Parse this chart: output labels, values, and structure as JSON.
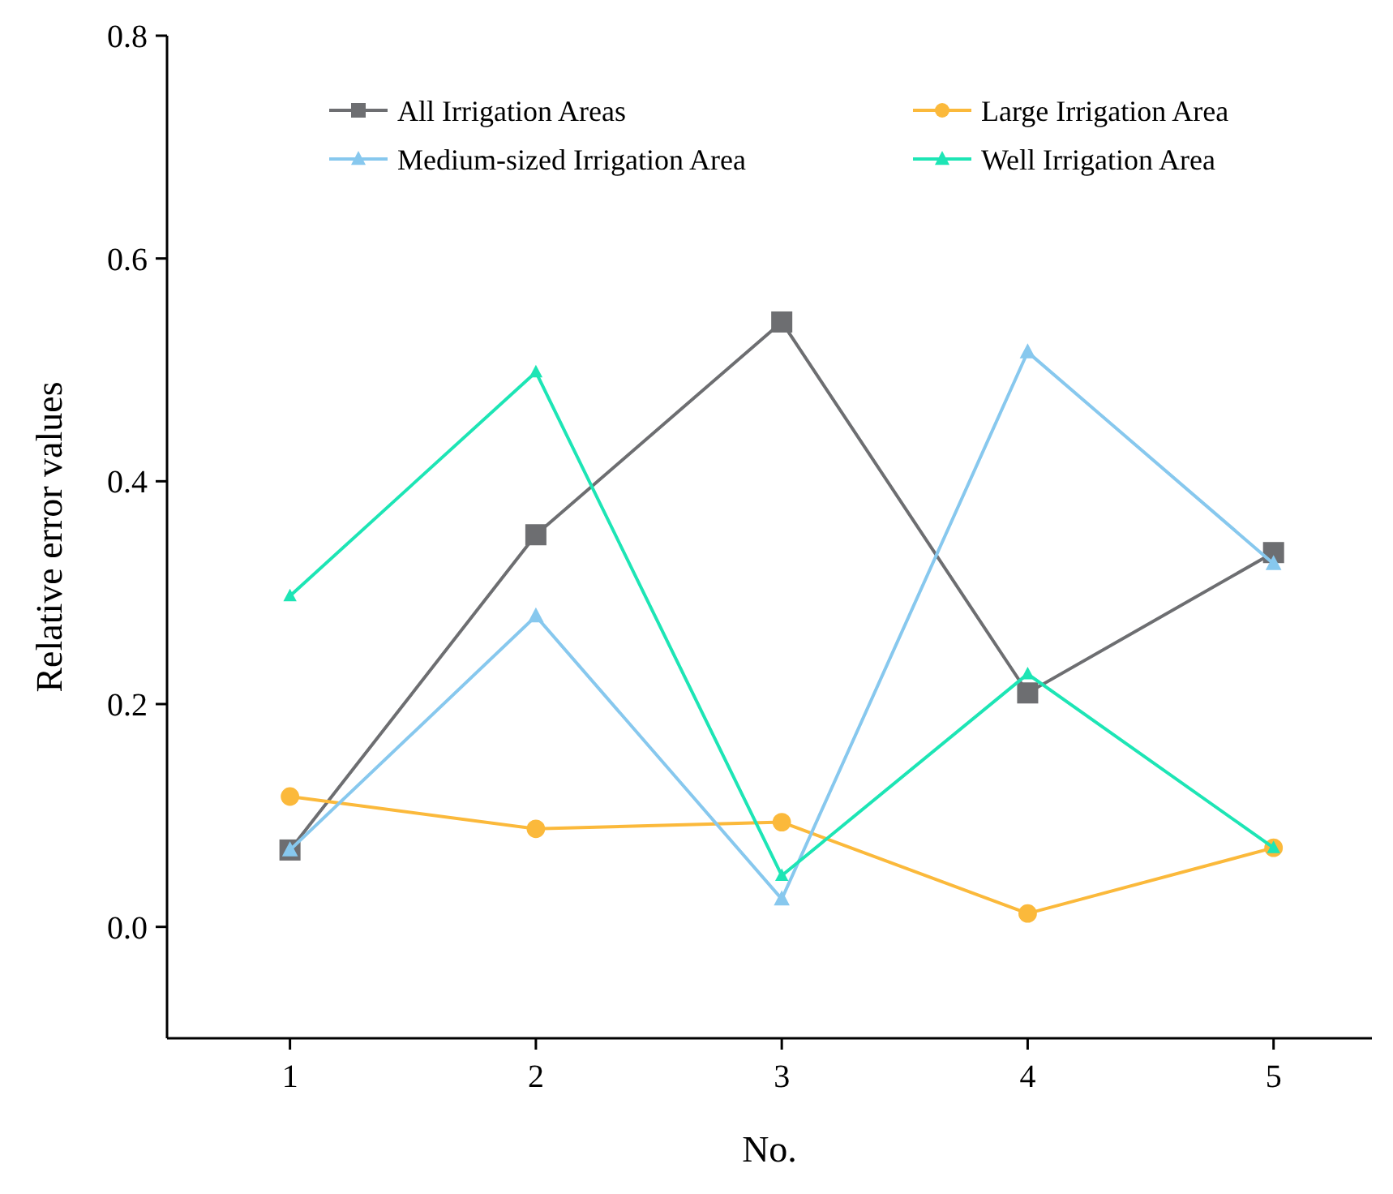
{
  "chart_data": {
    "type": "line",
    "xlabel": "No.",
    "ylabel": "Relative error values",
    "x": [
      1,
      2,
      3,
      4,
      5
    ],
    "series": [
      {
        "name": "All Irrigation Areas",
        "color": "#6d6e71",
        "marker": "square",
        "values": [
          0.069,
          0.352,
          0.543,
          0.21,
          0.336
        ]
      },
      {
        "name": "Large Irrigation Area",
        "color": "#fbb93b",
        "marker": "circle",
        "values": [
          0.117,
          0.088,
          0.094,
          0.012,
          0.071
        ]
      },
      {
        "name": "Medium-sized Irrigation Area",
        "color": "#87c8ee",
        "marker": "triangle",
        "values": [
          0.069,
          0.279,
          0.025,
          0.516,
          0.326
        ]
      },
      {
        "name": "Well Irrigation Area",
        "color": "#1de5b5",
        "marker": "triangle",
        "values": [
          0.297,
          0.498,
          0.046,
          0.227,
          0.071
        ]
      }
    ],
    "xlim": [
      0.5,
      5.4
    ],
    "xticks": [
      1,
      2,
      3,
      4,
      5
    ],
    "ylim": [
      -0.1,
      0.8
    ],
    "yticks": [
      {
        "value": 0,
        "label": "0.0"
      },
      {
        "value": 0.2,
        "label": "0.2"
      },
      {
        "value": 0.4,
        "label": "0.4"
      },
      {
        "value": 0.6,
        "label": "0.6"
      },
      {
        "value": 0.8,
        "label": "0.8"
      }
    ],
    "grid": false,
    "legend": "top",
    "line_style": "solid"
  }
}
